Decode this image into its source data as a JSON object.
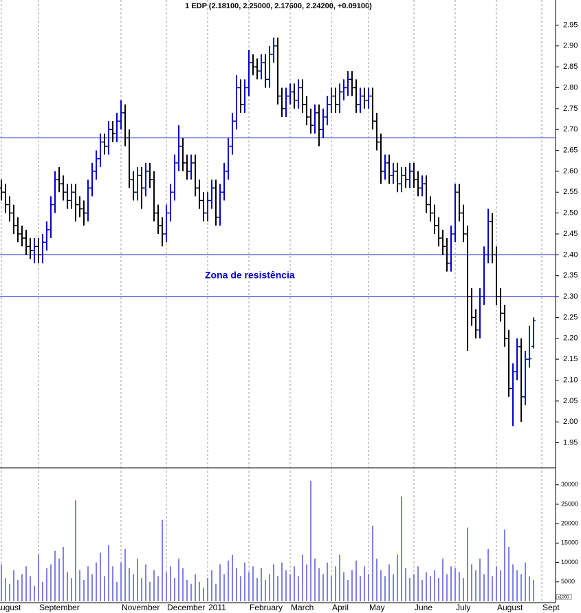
{
  "chart_data": {
    "type": "ohlc",
    "title": "1 EDP (2.18100, 2.25000, 2.17600, 2.24200, +0.09100)",
    "annotation": "Zona de resistência",
    "categories": [
      "August",
      null,
      null,
      null,
      null,
      null,
      null,
      null,
      null,
      "September",
      null,
      null,
      null,
      null,
      null,
      null,
      null,
      null,
      null,
      null,
      null,
      null,
      null,
      null,
      null,
      null,
      null,
      null,
      null,
      "November",
      null,
      null,
      null,
      null,
      null,
      null,
      null,
      null,
      null,
      null,
      "December",
      null,
      null,
      null,
      null,
      null,
      null,
      null,
      null,
      null,
      "2011",
      null,
      null,
      null,
      null,
      null,
      null,
      null,
      null,
      null,
      "February",
      null,
      null,
      null,
      null,
      null,
      null,
      null,
      null,
      null,
      "March",
      null,
      null,
      null,
      null,
      null,
      null,
      null,
      null,
      null,
      "April",
      null,
      null,
      null,
      null,
      null,
      null,
      null,
      null,
      "May",
      null,
      null,
      null,
      null,
      null,
      null,
      null,
      null,
      null,
      null,
      "June",
      null,
      null,
      null,
      null,
      null,
      null,
      null,
      null,
      null,
      "July",
      null,
      null,
      null,
      null,
      null,
      null,
      null,
      null,
      null,
      "August",
      null,
      null,
      null,
      null,
      null,
      null,
      null,
      null,
      null,
      null,
      "Sept"
    ],
    "open": [
      2.56,
      2.55,
      2.52,
      2.5,
      2.47,
      2.45,
      2.44,
      2.42,
      2.41,
      2.42,
      2.4,
      2.43,
      2.46,
      2.52,
      2.58,
      2.57,
      2.55,
      2.53,
      2.55,
      2.52,
      2.51,
      2.5,
      2.56,
      2.6,
      2.63,
      2.67,
      2.66,
      2.7,
      2.69,
      2.72,
      2.74,
      2.68,
      2.58,
      2.55,
      2.59,
      2.56,
      2.6,
      2.58,
      2.5,
      2.47,
      2.45,
      2.5,
      2.55,
      2.62,
      2.66,
      2.62,
      2.6,
      2.62,
      2.56,
      2.53,
      2.5,
      2.53,
      2.56,
      2.49,
      2.55,
      2.6,
      2.66,
      2.72,
      2.8,
      2.76,
      2.8,
      2.86,
      2.85,
      2.84,
      2.86,
      2.82,
      2.88,
      2.9,
      2.78,
      2.75,
      2.78,
      2.79,
      2.77,
      2.8,
      2.76,
      2.73,
      2.71,
      2.74,
      2.7,
      2.73,
      2.76,
      2.78,
      2.76,
      2.79,
      2.8,
      2.82,
      2.8,
      2.76,
      2.78,
      2.77,
      2.78,
      2.72,
      2.67,
      2.6,
      2.62,
      2.59,
      2.6,
      2.57,
      2.59,
      2.58,
      2.6,
      2.58,
      2.56,
      2.57,
      2.52,
      2.5,
      2.47,
      2.44,
      2.42,
      2.38,
      2.45,
      2.55,
      2.5,
      2.45,
      2.3,
      2.25,
      2.22,
      2.3,
      2.4,
      2.48,
      2.4,
      2.3,
      2.26,
      2.2,
      2.08,
      2.12,
      2.18,
      2.06,
      2.15,
      2.181,
      null,
      null
    ],
    "high": [
      2.58,
      2.57,
      2.54,
      2.52,
      2.49,
      2.47,
      2.46,
      2.44,
      2.44,
      2.44,
      2.45,
      2.48,
      2.54,
      2.6,
      2.61,
      2.59,
      2.57,
      2.57,
      2.57,
      2.54,
      2.53,
      2.58,
      2.62,
      2.65,
      2.69,
      2.69,
      2.72,
      2.72,
      2.74,
      2.77,
      2.76,
      2.7,
      2.6,
      2.61,
      2.61,
      2.62,
      2.62,
      2.6,
      2.52,
      2.49,
      2.52,
      2.57,
      2.64,
      2.71,
      2.68,
      2.64,
      2.64,
      2.64,
      2.58,
      2.55,
      2.55,
      2.58,
      2.58,
      2.57,
      2.62,
      2.68,
      2.74,
      2.83,
      2.82,
      2.82,
      2.89,
      2.88,
      2.87,
      2.88,
      2.88,
      2.9,
      2.92,
      2.92,
      2.8,
      2.8,
      2.81,
      2.81,
      2.82,
      2.82,
      2.78,
      2.75,
      2.76,
      2.76,
      2.75,
      2.78,
      2.8,
      2.8,
      2.81,
      2.82,
      2.84,
      2.84,
      2.82,
      2.8,
      2.8,
      2.8,
      2.8,
      2.74,
      2.69,
      2.64,
      2.64,
      2.62,
      2.62,
      2.61,
      2.61,
      2.62,
      2.62,
      2.6,
      2.59,
      2.59,
      2.54,
      2.52,
      2.49,
      2.46,
      2.44,
      2.47,
      2.57,
      2.57,
      2.52,
      2.47,
      2.32,
      2.27,
      2.32,
      2.42,
      2.51,
      2.5,
      2.42,
      2.32,
      2.28,
      2.22,
      2.14,
      2.2,
      2.2,
      2.17,
      2.23,
      2.25,
      null,
      null
    ],
    "low": [
      2.53,
      2.5,
      2.48,
      2.45,
      2.43,
      2.42,
      2.4,
      2.39,
      2.38,
      2.38,
      2.38,
      2.41,
      2.44,
      2.5,
      2.55,
      2.53,
      2.51,
      2.51,
      2.48,
      2.49,
      2.47,
      2.48,
      2.54,
      2.58,
      2.61,
      2.64,
      2.64,
      2.67,
      2.67,
      2.7,
      2.66,
      2.56,
      2.53,
      2.53,
      2.51,
      2.54,
      2.56,
      2.48,
      2.45,
      2.42,
      2.43,
      2.48,
      2.53,
      2.6,
      2.6,
      2.58,
      2.58,
      2.54,
      2.51,
      2.48,
      2.48,
      2.51,
      2.47,
      2.47,
      2.53,
      2.58,
      2.64,
      2.7,
      2.74,
      2.74,
      2.78,
      2.83,
      2.82,
      2.82,
      2.8,
      2.8,
      2.86,
      2.76,
      2.73,
      2.73,
      2.76,
      2.75,
      2.75,
      2.74,
      2.71,
      2.69,
      2.69,
      2.66,
      2.68,
      2.71,
      2.74,
      2.74,
      2.74,
      2.77,
      2.78,
      2.78,
      2.74,
      2.74,
      2.75,
      2.75,
      2.7,
      2.65,
      2.57,
      2.58,
      2.57,
      2.57,
      2.55,
      2.55,
      2.56,
      2.56,
      2.56,
      2.54,
      2.54,
      2.5,
      2.48,
      2.45,
      2.42,
      2.4,
      2.36,
      2.36,
      2.43,
      2.48,
      2.43,
      2.17,
      2.23,
      2.2,
      2.2,
      2.28,
      2.38,
      2.38,
      2.28,
      2.24,
      2.18,
      2.06,
      1.99,
      2.1,
      2.0,
      2.04,
      2.13,
      2.176,
      null,
      null
    ],
    "close": [
      2.55,
      2.52,
      2.5,
      2.47,
      2.45,
      2.44,
      2.42,
      2.41,
      2.42,
      2.4,
      2.43,
      2.46,
      2.52,
      2.58,
      2.57,
      2.55,
      2.53,
      2.55,
      2.52,
      2.51,
      2.5,
      2.56,
      2.6,
      2.63,
      2.67,
      2.66,
      2.7,
      2.69,
      2.72,
      2.74,
      2.68,
      2.58,
      2.55,
      2.59,
      2.56,
      2.6,
      2.58,
      2.5,
      2.47,
      2.45,
      2.5,
      2.55,
      2.62,
      2.66,
      2.62,
      2.6,
      2.62,
      2.56,
      2.53,
      2.5,
      2.53,
      2.56,
      2.49,
      2.55,
      2.6,
      2.66,
      2.72,
      2.8,
      2.76,
      2.8,
      2.86,
      2.85,
      2.84,
      2.86,
      2.82,
      2.88,
      2.9,
      2.78,
      2.75,
      2.78,
      2.79,
      2.77,
      2.8,
      2.76,
      2.73,
      2.71,
      2.74,
      2.7,
      2.73,
      2.76,
      2.78,
      2.76,
      2.79,
      2.8,
      2.82,
      2.8,
      2.76,
      2.78,
      2.77,
      2.78,
      2.72,
      2.67,
      2.6,
      2.62,
      2.59,
      2.6,
      2.57,
      2.59,
      2.58,
      2.6,
      2.58,
      2.56,
      2.57,
      2.52,
      2.5,
      2.47,
      2.44,
      2.42,
      2.38,
      2.45,
      2.55,
      2.5,
      2.45,
      2.3,
      2.25,
      2.22,
      2.3,
      2.4,
      2.48,
      2.4,
      2.3,
      2.26,
      2.2,
      2.08,
      2.12,
      2.18,
      2.06,
      2.15,
      2.151,
      2.242,
      null,
      null
    ],
    "up_color": "#0000cc",
    "down_color": "#000000",
    "ylim": [
      1.89,
      3.01
    ],
    "yticks": [
      1.95,
      {
        "value": 2,
        "label": "2.00"
      },
      2.05,
      {
        "value": 2.1,
        "label": "2.10"
      },
      2.15,
      {
        "value": 2.2,
        "label": "2.20"
      },
      2.25,
      {
        "value": 2.3,
        "label": "2.30"
      },
      2.35,
      {
        "value": 2.4,
        "label": "2.40"
      },
      2.45,
      {
        "value": 2.5,
        "label": "2.50"
      },
      2.55,
      {
        "value": 2.6,
        "label": "2.60"
      },
      2.65,
      {
        "value": 2.7,
        "label": "2.70"
      },
      2.75,
      {
        "value": 2.8,
        "label": "2.80"
      },
      2.85,
      {
        "value": 2.9,
        "label": "2.90"
      },
      2.95
    ],
    "hlines": [
      2.68,
      2.4,
      2.3
    ],
    "hline_color": "#0000cc",
    "month_grid": true,
    "volume": {
      "color": "#0000cc",
      "scale_label": "x1000",
      "ylim": [
        0,
        34200
      ],
      "yticks": [
        5000,
        10000,
        15000,
        20000,
        25000,
        30000
      ],
      "values": [
        9500,
        6000,
        4500,
        8000,
        5500,
        7000,
        9000,
        6500,
        4000,
        12000,
        5000,
        8500,
        9500,
        13000,
        11000,
        14000,
        7500,
        6000,
        26000,
        8000,
        5500,
        9000,
        7000,
        10000,
        12500,
        6500,
        14500,
        9000,
        5000,
        10000,
        13500,
        8500,
        7000,
        11000,
        6000,
        9500,
        5000,
        8000,
        6500,
        21000,
        7500,
        9000,
        6000,
        11000,
        8500,
        5500,
        4500,
        7000,
        5000,
        3500,
        6000,
        8000,
        4500,
        9500,
        7000,
        10500,
        12000,
        8500,
        6500,
        10000,
        7500,
        9000,
        6000,
        8500,
        5500,
        7000,
        9500,
        6500,
        10000,
        8000,
        7000,
        9000,
        6500,
        12000,
        9500,
        31000,
        11000,
        8500,
        7000,
        10000,
        6500,
        9000,
        12000,
        7500,
        5500,
        8000,
        10500,
        6500,
        9000,
        7000,
        19500,
        11000,
        8000,
        6500,
        9500,
        7000,
        12000,
        27000,
        8500,
        6000,
        7000,
        9000,
        5500,
        7500,
        6500,
        8000,
        6000,
        11000,
        7000,
        9000,
        8500,
        7500,
        6000,
        19000,
        9500,
        8000,
        11000,
        7000,
        13500,
        6500,
        9000,
        8000,
        18500,
        14000,
        9500,
        8000,
        7000,
        10000,
        6500,
        5500,
        null,
        null
      ]
    }
  }
}
